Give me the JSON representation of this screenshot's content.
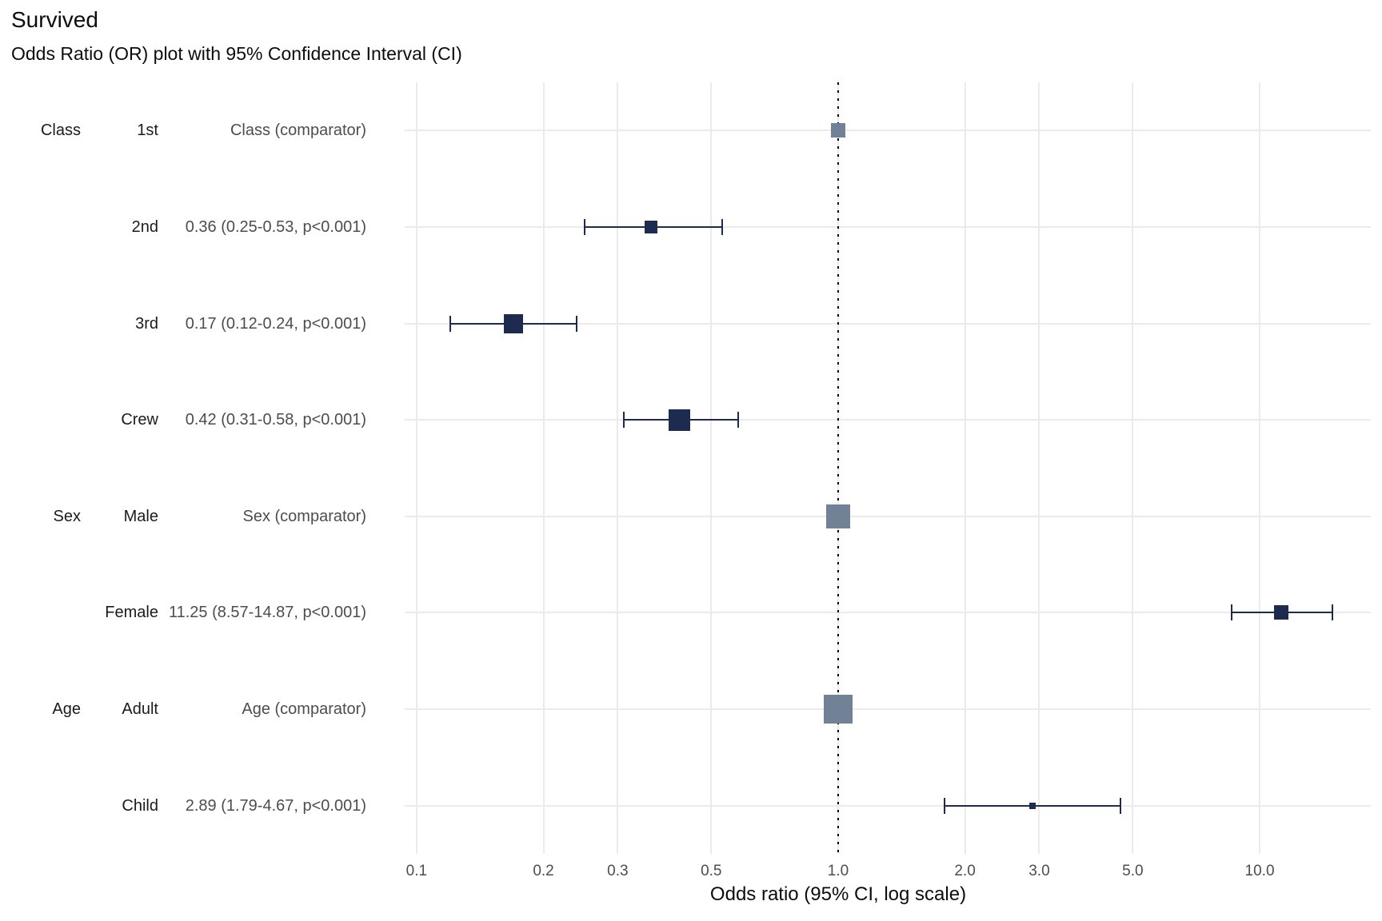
{
  "title": "Survived",
  "subtitle": "Odds Ratio (OR) plot with 95% Confidence Interval (CI)",
  "xlabel": "Odds ratio (95% CI, log scale)",
  "chart_data": {
    "type": "scatter",
    "subtype": "forest-plot-odds-ratio",
    "title": "Survived",
    "subtitle": "Odds Ratio (OR) plot with 95% Confidence Interval (CI)",
    "xlabel": "Odds ratio (95% CI, log scale)",
    "x_scale": "log10",
    "x_range": [
      0.0937,
      18.35
    ],
    "x_ticks": [
      0.1,
      0.2,
      0.3,
      0.5,
      1.0,
      2.0,
      3.0,
      5.0,
      10.0
    ],
    "x_tick_labels": [
      "0.1",
      "0.2",
      "0.3",
      "0.5",
      "1.0",
      "2.0",
      "3.0",
      "5.0",
      "10.0"
    ],
    "reference_line": 1.0,
    "grid": true,
    "rows": [
      {
        "group": "Class",
        "level": "1st",
        "annotation": "Class (comparator)",
        "or": 1.0,
        "ci_low": null,
        "ci_high": null,
        "comparator": true,
        "marker_size": 18
      },
      {
        "group": "",
        "level": "2nd",
        "annotation": "0.36 (0.25-0.53, p<0.001)",
        "or": 0.36,
        "ci_low": 0.25,
        "ci_high": 0.53,
        "comparator": false,
        "marker_size": 16
      },
      {
        "group": "",
        "level": "3rd",
        "annotation": "0.17 (0.12-0.24, p<0.001)",
        "or": 0.17,
        "ci_low": 0.12,
        "ci_high": 0.24,
        "comparator": false,
        "marker_size": 24
      },
      {
        "group": "",
        "level": "Crew",
        "annotation": "0.42 (0.31-0.58, p<0.001)",
        "or": 0.42,
        "ci_low": 0.31,
        "ci_high": 0.58,
        "comparator": false,
        "marker_size": 27
      },
      {
        "group": "Sex",
        "level": "Male",
        "annotation": "Sex (comparator)",
        "or": 1.0,
        "ci_low": null,
        "ci_high": null,
        "comparator": true,
        "marker_size": 30
      },
      {
        "group": "",
        "level": "Female",
        "annotation": "11.25 (8.57-14.87, p<0.001)",
        "or": 11.25,
        "ci_low": 8.57,
        "ci_high": 14.87,
        "comparator": false,
        "marker_size": 18
      },
      {
        "group": "Age",
        "level": "Adult",
        "annotation": "Age (comparator)",
        "or": 1.0,
        "ci_low": null,
        "ci_high": null,
        "comparator": true,
        "marker_size": 36
      },
      {
        "group": "",
        "level": "Child",
        "annotation": "2.89 (1.79-4.67, p<0.001)",
        "or": 2.89,
        "ci_low": 1.79,
        "ci_high": 4.67,
        "comparator": false,
        "marker_size": 8
      }
    ],
    "colors": {
      "estimate": "#1E2B50",
      "comparator": "#718296",
      "grid": "#EBEBEB",
      "reference": "#000000",
      "tick_text": "#4D4D4D",
      "annotation_text": "#4D4D4D",
      "label_text": "#1B1B1B"
    }
  }
}
